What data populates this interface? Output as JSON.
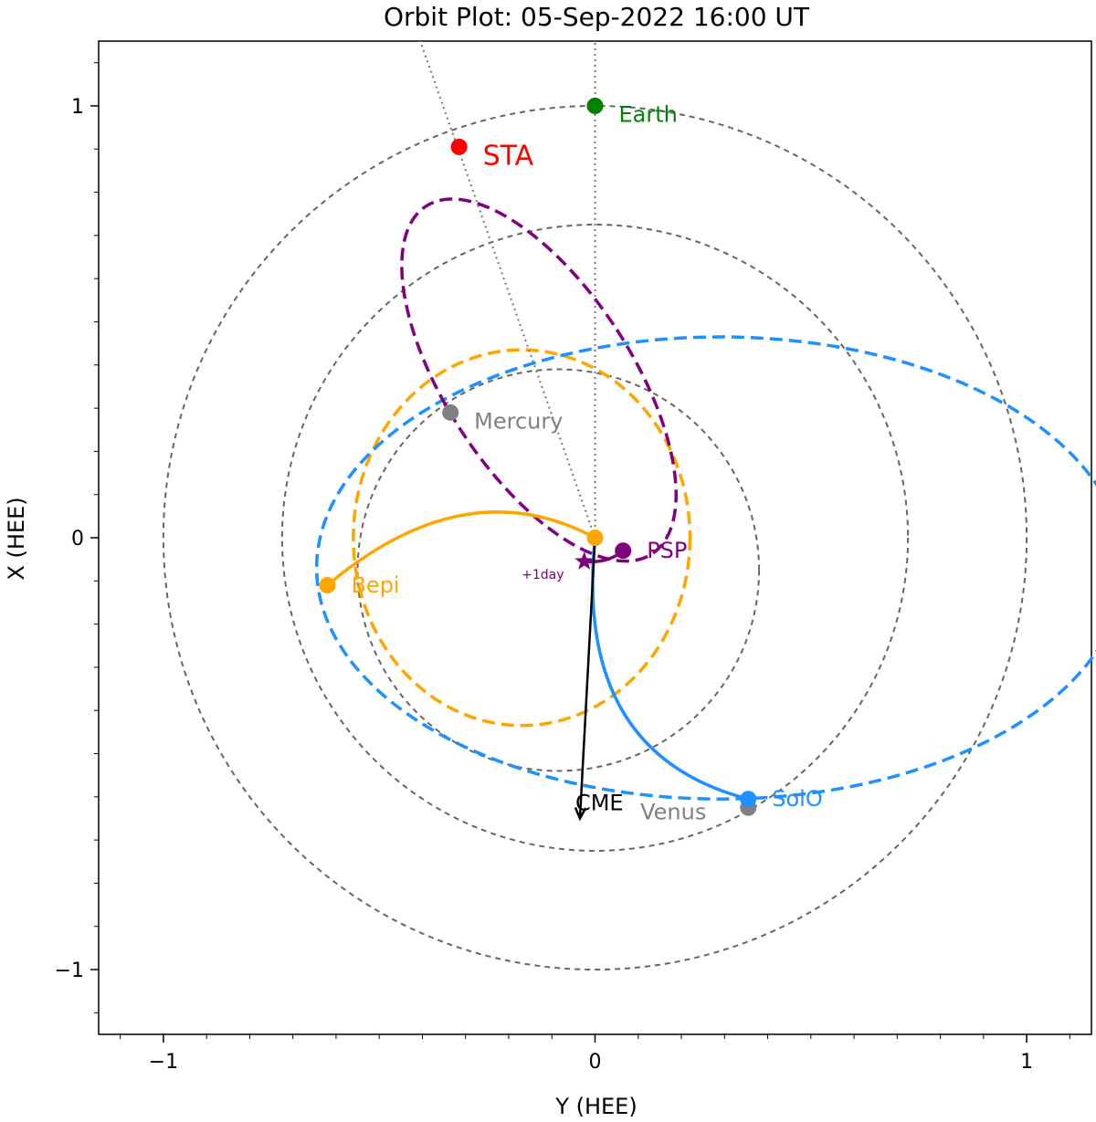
{
  "chart_data": {
    "type": "scatter",
    "title": "Orbit Plot: 05-Sep-2022 16:00 UT",
    "xlabel": "Y (HEE)",
    "ylabel": "X (HEE)",
    "xlim": [
      -1.15,
      1.15
    ],
    "ylim": [
      1.15,
      -1.15
    ],
    "x_ticks": [
      -1,
      0,
      1
    ],
    "x_tick_labels": [
      "−1",
      "0",
      "1"
    ],
    "y_ticks": [
      -1,
      0,
      1
    ],
    "y_tick_labels": [
      "−1",
      "0",
      "1"
    ],
    "grid": false,
    "reference_orbits": [
      {
        "center": [
          -0.085,
          -0.075
        ],
        "rx": 0.465,
        "ry": 0.465
      },
      {
        "center": [
          0.0,
          0.0
        ],
        "rx": 0.725,
        "ry": 0.725
      },
      {
        "center": [
          0.0,
          0.0
        ],
        "rx": 1.0,
        "ry": 1.0
      }
    ],
    "orbits": [
      {
        "name": "Bepi",
        "color": "#FFA500",
        "center": [
          -0.17,
          0.0
        ],
        "rx": 0.39,
        "ry": 0.435
      },
      {
        "name": "SolO",
        "color": "#1E90FF",
        "center": [
          0.29,
          -0.07
        ],
        "rx": 0.935,
        "ry": 0.535,
        "rotation_deg": 0
      },
      {
        "name": "PSP",
        "color": "#800080",
        "center": [
          -0.13,
          0.365
        ],
        "rx": 0.215,
        "ry": 0.48,
        "rotation_deg": -33
      }
    ],
    "trajectories": [
      {
        "name": "Bepi",
        "color": "#FFA500",
        "from": [
          -0.62,
          -0.11
        ],
        "to": [
          0.0,
          0.0
        ],
        "control": [
          -0.3,
          0.16
        ]
      },
      {
        "name": "SolO",
        "color": "#1E90FF",
        "from": [
          0.355,
          -0.605
        ],
        "to": [
          0.0,
          0.0
        ],
        "control": [
          -0.05,
          -0.5
        ]
      },
      {
        "name": "PSP",
        "color": "#800080",
        "from": [
          0.065,
          -0.03
        ],
        "to": [
          -0.025,
          -0.055
        ],
        "control": [
          0.03,
          -0.06
        ]
      }
    ],
    "lines_of_sight": [
      {
        "from": [
          0.0,
          0.0
        ],
        "to": [
          0.0,
          1.15
        ],
        "style": "dotted"
      },
      {
        "from": [
          0.0,
          0.0
        ],
        "to": [
          -0.405,
          1.15
        ],
        "style": "dotted"
      }
    ],
    "cme": {
      "label": "CME",
      "from": [
        0.0,
        0.0
      ],
      "to": [
        -0.035,
        -0.65
      ],
      "color": "#000000"
    },
    "points": [
      {
        "name": "Venus",
        "x": 0.355,
        "y": -0.625,
        "color": "#808080",
        "label_color": "#808080",
        "label_dx": -0.25,
        "label_dy": -0.01
      },
      {
        "name": "SolO",
        "x": 0.355,
        "y": -0.605,
        "color": "#1E90FF",
        "label_color": "#1E90FF",
        "label_dx": 0.055,
        "label_dy": 0.0
      },
      {
        "name": "Bepi",
        "x": -0.62,
        "y": -0.11,
        "color": "#FFA500",
        "label_color": "#FFA500",
        "label_dx": 0.055,
        "label_dy": 0.0
      },
      {
        "name": "PSP",
        "x": 0.065,
        "y": -0.03,
        "color": "#800080",
        "label_color": "#800080",
        "label_dx": 0.055,
        "label_dy": 0.0
      },
      {
        "name": "",
        "x": 0.0,
        "y": 0.0,
        "color": "#FFA500"
      },
      {
        "name": "Mercury",
        "x": -0.335,
        "y": 0.29,
        "color": "#808080",
        "label_color": "#808080",
        "label_dx": 0.055,
        "label_dy": -0.02
      },
      {
        "name": "STA",
        "x": -0.315,
        "y": 0.905,
        "color": "#FF0000",
        "label_color": "#FF0000",
        "label_dx": 0.055,
        "label_dy": -0.025,
        "big": true
      },
      {
        "name": "Earth",
        "x": 0.0,
        "y": 1.0,
        "color": "#008000",
        "label_color": "#008000",
        "label_dx": 0.055,
        "label_dy": -0.02
      }
    ],
    "marker_star": {
      "name": "+1day",
      "x": -0.025,
      "y": -0.055,
      "color": "#800080",
      "label_dx": -0.145,
      "label_dy": -0.03
    }
  }
}
